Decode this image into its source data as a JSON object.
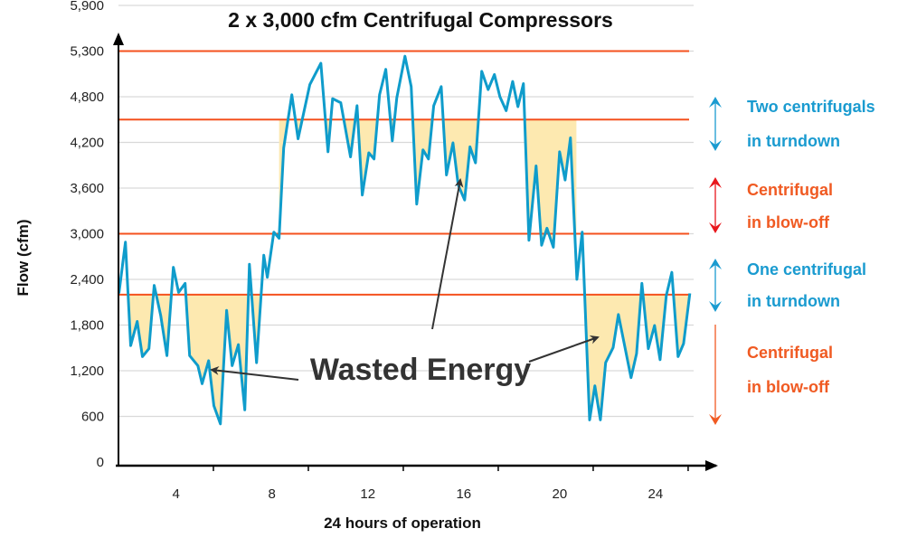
{
  "chart_data": {
    "type": "line",
    "title": "2 x 3,000 cfm Centrifugal Compressors",
    "xlabel": "24 hours of operation",
    "ylabel": "Flow (cfm)",
    "xlim": [
      1.6,
      25.4
    ],
    "x_ticks": [
      4,
      8,
      12,
      16,
      20,
      24
    ],
    "y_ticks": [
      0,
      600,
      1200,
      1800,
      2400,
      3000,
      3600,
      4200,
      4800,
      5300,
      5900
    ],
    "y_tick_labels": [
      "0",
      "600",
      "1,200",
      "1,800",
      "2,400",
      "3,000",
      "3,600",
      "4,200",
      "4,800",
      "5,300",
      "5,900"
    ],
    "grid": true,
    "threshold_lines": [
      5300,
      4500,
      3000,
      2200
    ],
    "colors": {
      "series": "#0f9ccb",
      "threshold": "#f4511e",
      "wasted": "#fde9b0",
      "blue_text": "#1a9bd0",
      "orange_text": "#f05a22"
    },
    "series": [
      {
        "name": "Flow",
        "x": [
          1.62,
          1.89,
          2.11,
          2.38,
          2.6,
          2.87,
          3.09,
          3.36,
          3.62,
          3.89,
          4.11,
          4.38,
          4.57,
          4.91,
          5.09,
          5.36,
          5.58,
          5.85,
          6.11,
          6.34,
          6.6,
          6.87,
          7.06,
          7.36,
          7.66,
          7.81,
          8.08,
          8.3,
          8.49,
          8.83,
          9.09,
          9.58,
          10.04,
          10.34,
          10.53,
          10.87,
          11.28,
          11.55,
          11.77,
          12.04,
          12.26,
          12.49,
          12.75,
          13.02,
          13.21,
          13.55,
          13.81,
          14.04,
          14.3,
          14.53,
          14.75,
          15.06,
          15.28,
          15.55,
          15.77,
          16.04,
          16.26,
          16.49,
          16.75,
          17.02,
          17.28,
          17.51,
          17.77,
          18.04,
          18.26,
          18.49,
          18.72,
          19.02,
          19.25,
          19.47,
          19.74,
          20.0,
          20.23,
          20.45,
          20.72,
          20.94,
          21.25,
          21.47,
          21.7,
          21.92,
          22.23,
          22.45,
          22.98,
          23.21,
          23.43,
          23.7,
          23.96,
          24.19,
          24.45,
          24.68,
          24.94,
          25.17,
          25.43
        ],
        "values": [
          2216,
          2889,
          1530,
          1847,
          1385,
          1490,
          2321,
          1926,
          1398,
          2559,
          2229,
          2348,
          1398,
          1266,
          1029,
          1332,
          739,
          501,
          1992,
          1266,
          1543,
          686,
          2598,
          1306,
          2717,
          2427,
          3021,
          2941,
          4128,
          4822,
          4247,
          4933,
          5167,
          4076,
          4775,
          4722,
          4010,
          4682,
          3509,
          4063,
          3983,
          4822,
          5100,
          4221,
          4788,
          5244,
          4911,
          3390,
          4102,
          3983,
          4682,
          4911,
          3772,
          4194,
          3640,
          3443,
          4142,
          3931,
          5078,
          4878,
          5044,
          4800,
          4617,
          4967,
          4669,
          4944,
          2915,
          3891,
          2849,
          3073,
          2823,
          4076,
          3706,
          4260,
          2401,
          3021,
          554,
          1002,
          554,
          1306,
          1504,
          1939,
          1108,
          1425,
          2348,
          1490,
          1794,
          1345,
          2190,
          2493,
          1385,
          1556,
          2216
        ]
      }
    ],
    "wasted_regions": [
      {
        "from": 1.6,
        "to": 8.3,
        "threshold": 2200
      },
      {
        "from": 8.3,
        "to": 20.7,
        "threshold": 4500
      },
      {
        "from": 20.7,
        "to": 25.4,
        "threshold": 2200
      }
    ],
    "annotation": "Wasted Energy",
    "bands": [
      {
        "line1": "Two centrifugals",
        "line2": "in turndown",
        "color": "blue"
      },
      {
        "line1": "Centrifugal",
        "line2": "in blow-off",
        "color": "orange"
      },
      {
        "line1": "One centrifugal",
        "line2": "in turndown",
        "color": "blue"
      },
      {
        "line1": "Centrifugal",
        "line2": "in blow-off",
        "color": "orange"
      }
    ]
  }
}
